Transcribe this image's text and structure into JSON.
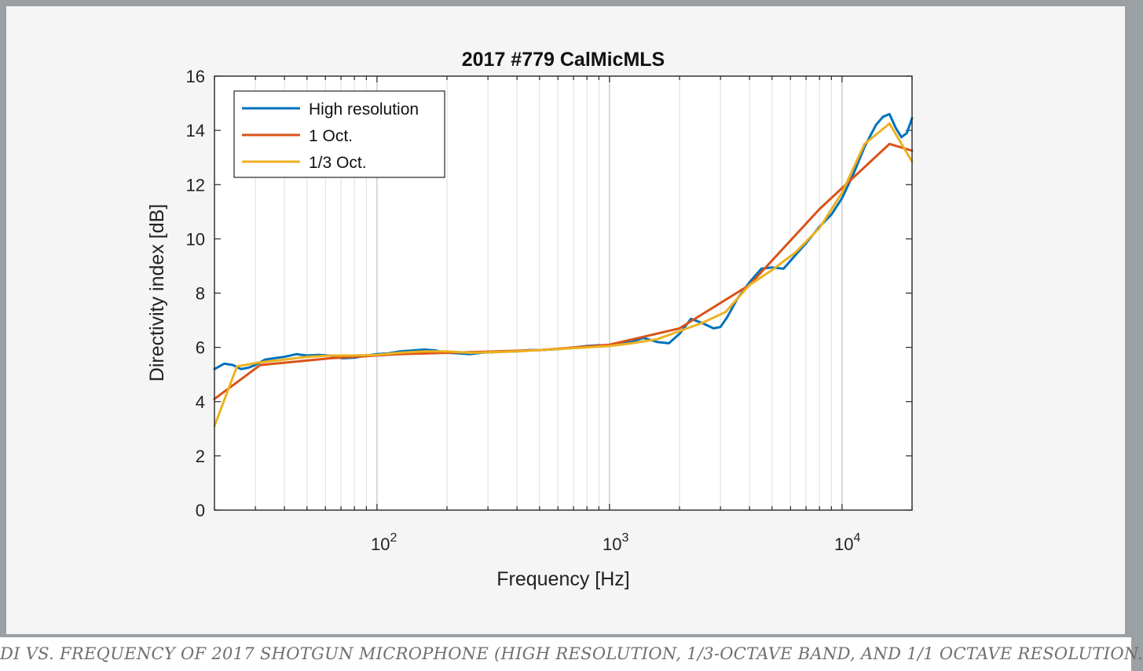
{
  "caption": "DI VS. FREQUENCY OF 2017 SHOTGUN MICROPHONE (HIGH RESOLUTION, 1/3-OCTAVE BAND, AND 1/1 OCTAVE RESOLUTION.",
  "chart_data": {
    "type": "line",
    "title": "2017 #779 CalMicMLS",
    "xlabel": "Frequency [Hz]",
    "ylabel": "Directivity index [dB]",
    "xscale": "log",
    "xlim": [
      20,
      20000
    ],
    "ylim": [
      0,
      16
    ],
    "grid_x": "major and minor",
    "grid_y": false,
    "legend_position": "top-left",
    "yticks": [
      "0",
      "2",
      "4",
      "6",
      "8",
      "10",
      "12",
      "14",
      "16"
    ],
    "xticks": [
      {
        "base": "10",
        "exp": "2",
        "value": 100
      },
      {
        "base": "10",
        "exp": "3",
        "value": 1000
      },
      {
        "base": "10",
        "exp": "4",
        "value": 10000
      }
    ],
    "series": [
      {
        "name": "High resolution",
        "color": "#0072bd",
        "x": [
          20,
          22,
          24,
          26,
          28,
          30,
          33,
          36,
          40,
          45,
          50,
          56,
          63,
          71,
          80,
          90,
          100,
          112,
          125,
          140,
          160,
          180,
          200,
          224,
          250,
          280,
          315,
          355,
          400,
          450,
          500,
          560,
          630,
          710,
          800,
          900,
          1000,
          1120,
          1250,
          1400,
          1600,
          1800,
          2000,
          2240,
          2500,
          2800,
          3000,
          3200,
          3550,
          4000,
          4500,
          5000,
          5600,
          6300,
          7100,
          8000,
          9000,
          10000,
          11200,
          12500,
          14000,
          15000,
          16000,
          17000,
          18000,
          19000,
          20000
        ],
        "y": [
          5.2,
          5.4,
          5.35,
          5.2,
          5.25,
          5.35,
          5.55,
          5.6,
          5.65,
          5.75,
          5.7,
          5.72,
          5.7,
          5.6,
          5.62,
          5.7,
          5.75,
          5.78,
          5.85,
          5.88,
          5.92,
          5.88,
          5.8,
          5.78,
          5.75,
          5.8,
          5.82,
          5.85,
          5.85,
          5.9,
          5.9,
          5.92,
          5.95,
          6.0,
          6.05,
          6.08,
          6.05,
          6.15,
          6.2,
          6.35,
          6.2,
          6.15,
          6.5,
          7.05,
          6.9,
          6.7,
          6.75,
          7.1,
          7.8,
          8.4,
          8.9,
          8.95,
          8.9,
          9.4,
          9.9,
          10.45,
          10.9,
          11.5,
          12.4,
          13.4,
          14.2,
          14.5,
          14.6,
          14.1,
          13.75,
          13.9,
          14.45
        ]
      },
      {
        "name": "1 Oct.",
        "color": "#d95319",
        "x": [
          20,
          31.5,
          63,
          125,
          250,
          500,
          1000,
          2000,
          4000,
          8000,
          16000,
          20000
        ],
        "y": [
          4.1,
          5.35,
          5.6,
          5.75,
          5.82,
          5.9,
          6.1,
          6.7,
          8.3,
          11.1,
          13.5,
          13.25
        ]
      },
      {
        "name": "1/3 Oct.",
        "color": "#edb120",
        "x": [
          20,
          25,
          31.5,
          40,
          50,
          63,
          80,
          100,
          125,
          160,
          200,
          250,
          315,
          400,
          500,
          630,
          800,
          1000,
          1250,
          1600,
          2000,
          2500,
          3150,
          4000,
          5000,
          6300,
          8000,
          10000,
          12500,
          16000,
          20000
        ],
        "y": [
          3.1,
          5.3,
          5.45,
          5.55,
          5.65,
          5.7,
          5.7,
          5.72,
          5.8,
          5.85,
          5.85,
          5.8,
          5.82,
          5.85,
          5.9,
          5.95,
          6.0,
          6.05,
          6.15,
          6.3,
          6.6,
          6.9,
          7.3,
          8.3,
          8.85,
          9.5,
          10.4,
          11.7,
          13.5,
          14.25,
          12.85
        ]
      }
    ]
  }
}
